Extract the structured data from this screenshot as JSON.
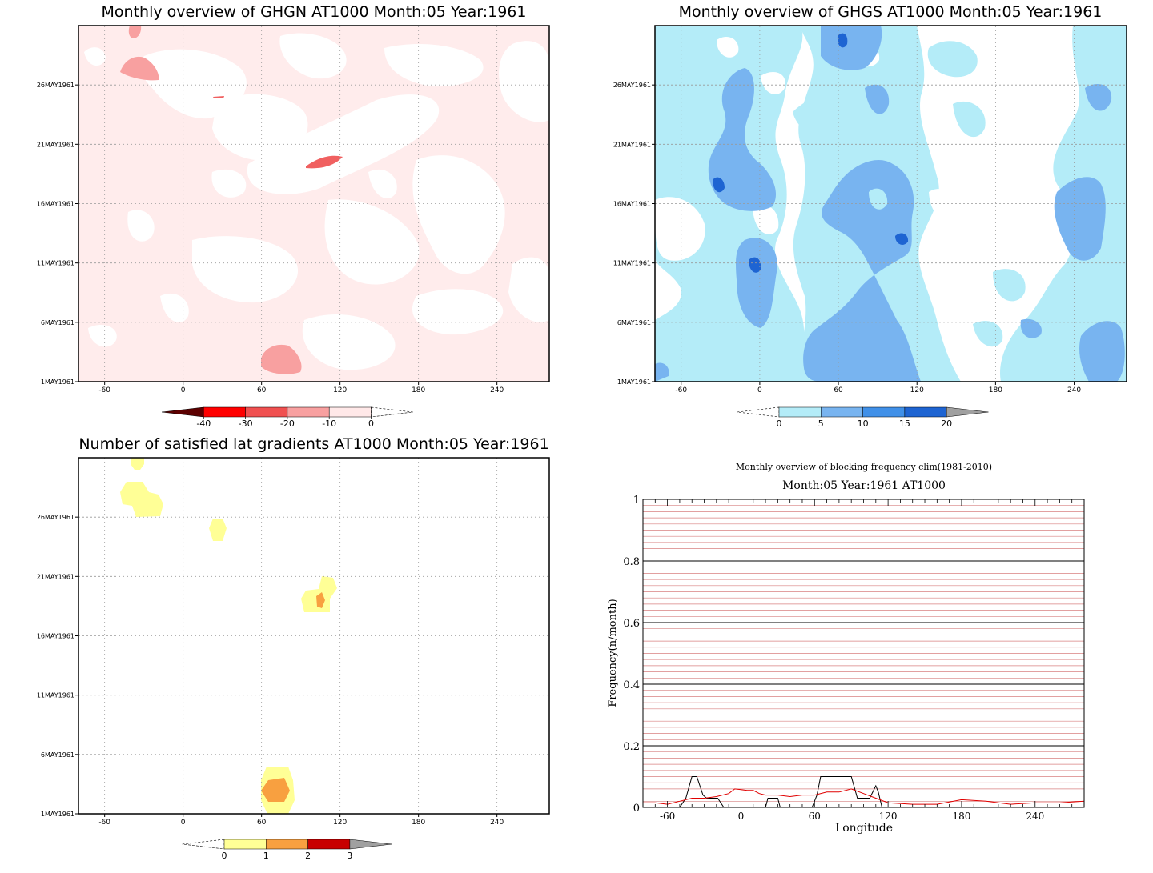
{
  "panels": [
    {
      "title": "Monthly overview of GHGN AT1000 Month:05 Year:1961",
      "x_ticks": [
        "-60",
        "0",
        "60",
        "120",
        "180",
        "240"
      ],
      "y_ticks": [
        "1MAY1961",
        "6MAY1961",
        "11MAY1961",
        "16MAY1961",
        "21MAY1961",
        "26MAY1961"
      ],
      "colorbar": {
        "labels": [
          "-40",
          "-30",
          "-20",
          "-10",
          "0"
        ],
        "colors": [
          "#5c0000",
          "#ff0000",
          "#f05050",
          "#f8a0a0",
          "#ffe8e8"
        ]
      },
      "colors": {
        "fill": "#ffecec",
        "light": "#ffffff",
        "strong": "#f8a0a0",
        "stronger": "#f06060"
      }
    },
    {
      "title": "Monthly overview of GHGS AT1000 Month:05 Year:1961",
      "x_ticks": [
        "-60",
        "0",
        "60",
        "120",
        "180",
        "240"
      ],
      "y_ticks": [
        "1MAY1961",
        "6MAY1961",
        "11MAY1961",
        "16MAY1961",
        "21MAY1961",
        "26MAY1961"
      ],
      "colorbar": {
        "labels": [
          "0",
          "5",
          "10",
          "15",
          "20"
        ],
        "colors": [
          "#b4ecf8",
          "#78b4f0",
          "#4090e8",
          "#1e64d2",
          "#a0a0a0"
        ]
      },
      "colors": {
        "light": "#b4ecf8",
        "mid": "#78b4f0",
        "strong": "#1e64d2"
      }
    },
    {
      "title": "Number of satisfied lat gradients AT1000 Month:05 Year:1961",
      "x_ticks": [
        "-60",
        "0",
        "60",
        "120",
        "180",
        "240"
      ],
      "y_ticks": [
        "1MAY1961",
        "6MAY1961",
        "11MAY1961",
        "16MAY1961",
        "21MAY1961",
        "26MAY1961"
      ],
      "colorbar": {
        "labels": [
          "0",
          "1",
          "2",
          "3"
        ],
        "colors": [
          "#ffff96",
          "#f8a040",
          "#c80000",
          "#a0a0a0"
        ]
      },
      "colors": {
        "yellow": "#ffff96",
        "orange": "#f8a040"
      }
    }
  ],
  "freq_panel": {
    "title1": "Monthly overview of blocking frequency clim(1981-2010)",
    "title2": "Month:05 Year:1961  AT1000",
    "xlabel": "Longitude",
    "ylabel": "Frequency(n/month)",
    "x_ticks": [
      "-60",
      "0",
      "60",
      "120",
      "180",
      "240"
    ],
    "y_ticks": [
      "0",
      "0.2",
      "0.4",
      "0.6",
      "0.8",
      "1"
    ]
  },
  "chart_data": [
    {
      "type": "heatmap",
      "title": "Monthly overview of GHGN AT1000 Month:05 Year:1961",
      "x": [
        -60,
        0,
        60,
        120,
        180,
        240
      ],
      "y": [
        "1MAY1961",
        "6MAY1961",
        "11MAY1961",
        "16MAY1961",
        "21MAY1961",
        "26MAY1961"
      ],
      "xlim": [
        -80,
        280
      ],
      "levels": [
        -40,
        -30,
        -20,
        -10,
        0
      ],
      "features": [
        {
          "lon": 70,
          "day": 1.9,
          "level": -20
        },
        {
          "lon": -30,
          "day": 27.6,
          "level": -20
        },
        {
          "lon": 108,
          "day": 19.1,
          "level": -30
        }
      ]
    },
    {
      "type": "heatmap",
      "title": "Monthly overview of GHGS AT1000 Month:05 Year:1961",
      "x": [
        -60,
        0,
        60,
        120,
        180,
        240
      ],
      "y": [
        "1MAY1961",
        "6MAY1961",
        "11MAY1961",
        "16MAY1961",
        "21MAY1961",
        "26MAY1961"
      ],
      "xlim": [
        -80,
        280
      ],
      "levels": [
        0,
        5,
        10,
        15,
        20
      ],
      "features": [
        {
          "lon": 62,
          "day": 30.5,
          "level": 15
        },
        {
          "lon": -30,
          "day": 17.2,
          "level": 15
        },
        {
          "lon": -4,
          "day": 10.8,
          "level": 15
        },
        {
          "lon": 109,
          "day": 14.2,
          "level": 15
        }
      ]
    },
    {
      "type": "heatmap",
      "title": "Number of satisfied lat gradients AT1000 Month:05 Year:1961",
      "x": [
        -60,
        0,
        60,
        120,
        180,
        240
      ],
      "y": [
        "1MAY1961",
        "6MAY1961",
        "11MAY1961",
        "16MAY1961",
        "21MAY1961",
        "26MAY1961"
      ],
      "xlim": [
        -80,
        280
      ],
      "levels": [
        0,
        1,
        2,
        3
      ],
      "features": [
        {
          "lon": -38,
          "day": 28.3,
          "level": 1
        },
        {
          "lon": -28,
          "day": 27.5,
          "level": 1
        },
        {
          "lon": 26,
          "day": 25.5,
          "level": 1
        },
        {
          "lon": 100,
          "day": 19.5,
          "level": 1
        },
        {
          "lon": 108,
          "day": 20.2,
          "level": 1
        },
        {
          "lon": 104,
          "day": 19.4,
          "level": 2
        },
        {
          "lon": 70,
          "day": 2.9,
          "level": 2
        },
        {
          "lon": 70,
          "day": 2.0,
          "level": 1
        }
      ]
    },
    {
      "type": "line",
      "title": "Month:05 Year:1961  AT1000",
      "xlabel": "Longitude",
      "ylabel": "Frequency(n/month)",
      "xlim": [
        -80,
        280
      ],
      "ylim": [
        0,
        1
      ],
      "series": [
        {
          "color": "#000000",
          "x": [
            -80,
            -50,
            -45,
            -40,
            -36,
            -31,
            -28,
            -24,
            -19,
            -14,
            -5,
            0,
            10,
            20,
            22,
            30,
            32,
            40,
            50,
            58,
            62,
            65,
            70,
            80,
            90,
            95,
            98,
            100,
            105,
            110,
            112,
            115,
            120,
            200,
            280
          ],
          "values": [
            0,
            0,
            0.03,
            0.1,
            0.1,
            0.04,
            0.03,
            0.03,
            0.03,
            0,
            0,
            0,
            0,
            0,
            0.03,
            0.03,
            0,
            0,
            0,
            0,
            0.04,
            0.1,
            0.1,
            0.1,
            0.1,
            0.03,
            0.03,
            0.03,
            0.03,
            0.07,
            0.05,
            0,
            0,
            0,
            0
          ]
        },
        {
          "color": "#e00000",
          "x": [
            -80,
            -70,
            -60,
            -50,
            -40,
            -30,
            -20,
            -10,
            -5,
            0,
            5,
            10,
            15,
            20,
            30,
            40,
            50,
            60,
            70,
            80,
            90,
            100,
            110,
            120,
            140,
            160,
            180,
            200,
            220,
            240,
            260,
            280
          ],
          "values": [
            0.015,
            0.015,
            0.01,
            0.02,
            0.03,
            0.03,
            0.035,
            0.045,
            0.06,
            0.058,
            0.055,
            0.055,
            0.045,
            0.04,
            0.04,
            0.035,
            0.04,
            0.04,
            0.05,
            0.05,
            0.06,
            0.045,
            0.03,
            0.015,
            0.01,
            0.01,
            0.025,
            0.02,
            0.01,
            0.015,
            0.015,
            0.02
          ]
        }
      ]
    }
  ]
}
